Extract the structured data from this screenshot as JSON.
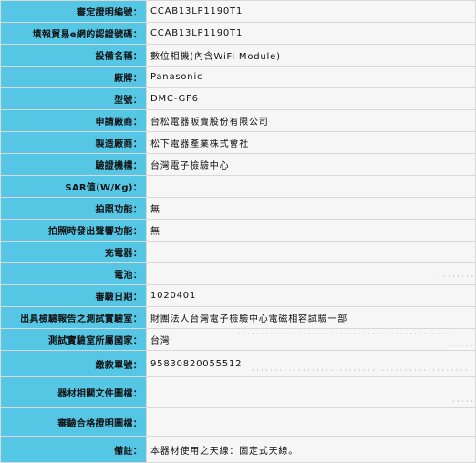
{
  "rows": [
    {
      "label": "審定證明編號：",
      "value": "CCAB13LP1190T1"
    },
    {
      "label": "填報貿易e網的認證號碼：",
      "value": "CCAB13LP1190T1"
    },
    {
      "label": "設備名稱：",
      "value": "數位相機(內含WiFi Module)"
    },
    {
      "label": "廠牌：",
      "value": "Panasonic"
    },
    {
      "label": "型號：",
      "value": "DMC-GF6"
    },
    {
      "label": "申請廠商：",
      "value": "台松電器販賣股份有限公司"
    },
    {
      "label": "製造廠商：",
      "value": "松下電器產業株式會社"
    },
    {
      "label": "驗證機構：",
      "value": "台灣電子檢驗中心"
    },
    {
      "label": "SAR值(W/Kg)：",
      "value": ""
    },
    {
      "label": "拍照功能：",
      "value": "無"
    },
    {
      "label": "拍照時發出聲響功能：",
      "value": "無"
    },
    {
      "label": "充電器：",
      "value": ""
    },
    {
      "label": "電池：",
      "value": ""
    },
    {
      "label": "審驗日期：",
      "value": "1020401"
    },
    {
      "label": "出具檢驗報告之測試實驗室：",
      "value": "財團法人台灣電子檢驗中心電磁相容試驗一部"
    },
    {
      "label": "測試實驗室所屬國家：",
      "value": "台灣"
    },
    {
      "label": "繳款單號：",
      "value": "95830820055512"
    },
    {
      "label": "器材相關文件圖檔：",
      "value": ""
    },
    {
      "label": "審驗合格證明圖檔：",
      "value": ""
    },
    {
      "label": "備註：",
      "value": "本器材使用之天線：固定式天線。"
    }
  ]
}
